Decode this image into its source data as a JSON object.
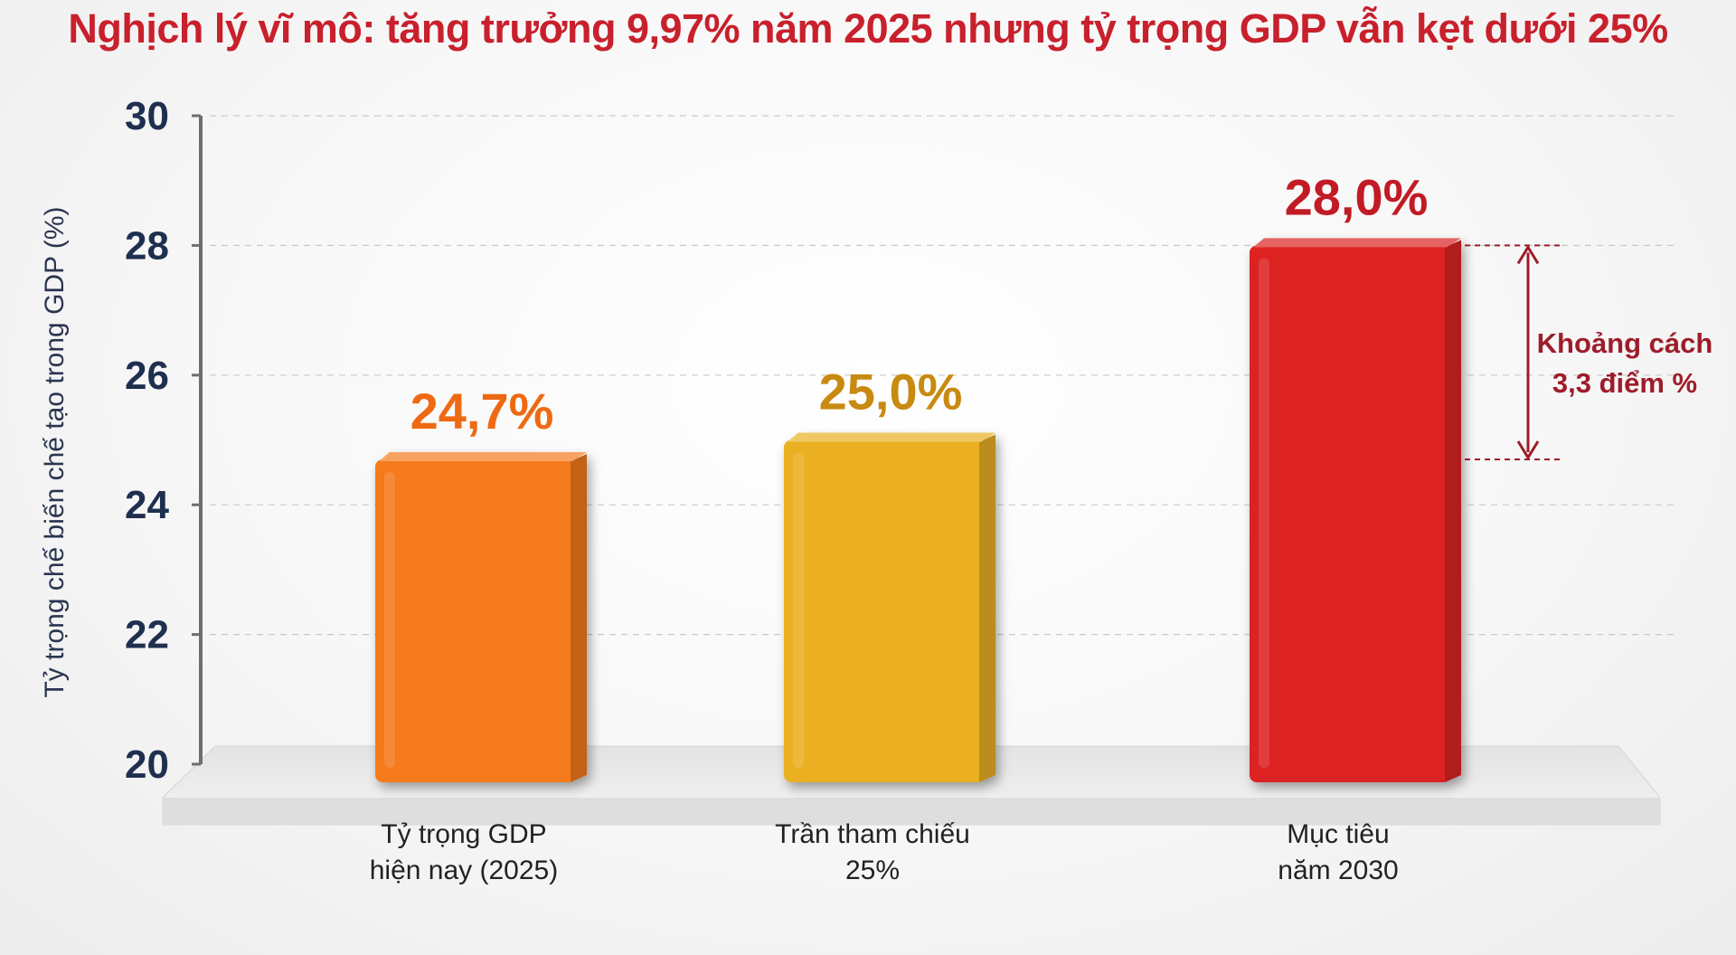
{
  "chart_data": {
    "type": "bar",
    "title": "Nghịch lý vĩ mô: tăng trưởng 9,97% năm 2025 nhưng tỷ trọng GDP vẫn kẹt dưới 25%",
    "ylabel": "Tỷ trọng chế biến chế tạo trong GDP (%)",
    "xlabel": "",
    "ylim": [
      20,
      30
    ],
    "yticks": [
      20,
      22,
      24,
      26,
      28,
      30
    ],
    "grid": true,
    "categories": [
      [
        "Tỷ trọng GDP",
        "hiện nay (2025)"
      ],
      [
        "Trần tham chiếu",
        "25%"
      ],
      [
        "Mục tiêu",
        "năm 2030"
      ]
    ],
    "values": [
      24.7,
      25.0,
      28.0
    ],
    "value_labels": [
      "24,7%",
      "25,0%",
      "28,0%"
    ],
    "colors": [
      "#f47a1c",
      "#eab020",
      "#dd2020"
    ],
    "label_colors": [
      "#ee6a12",
      "#c98a12",
      "#c21b26"
    ],
    "annotation": {
      "lines": [
        "Khoảng cách",
        "3,3 điểm %"
      ],
      "from_value": 24.7,
      "to_value": 28.0,
      "color": "#9e1c2a"
    }
  }
}
